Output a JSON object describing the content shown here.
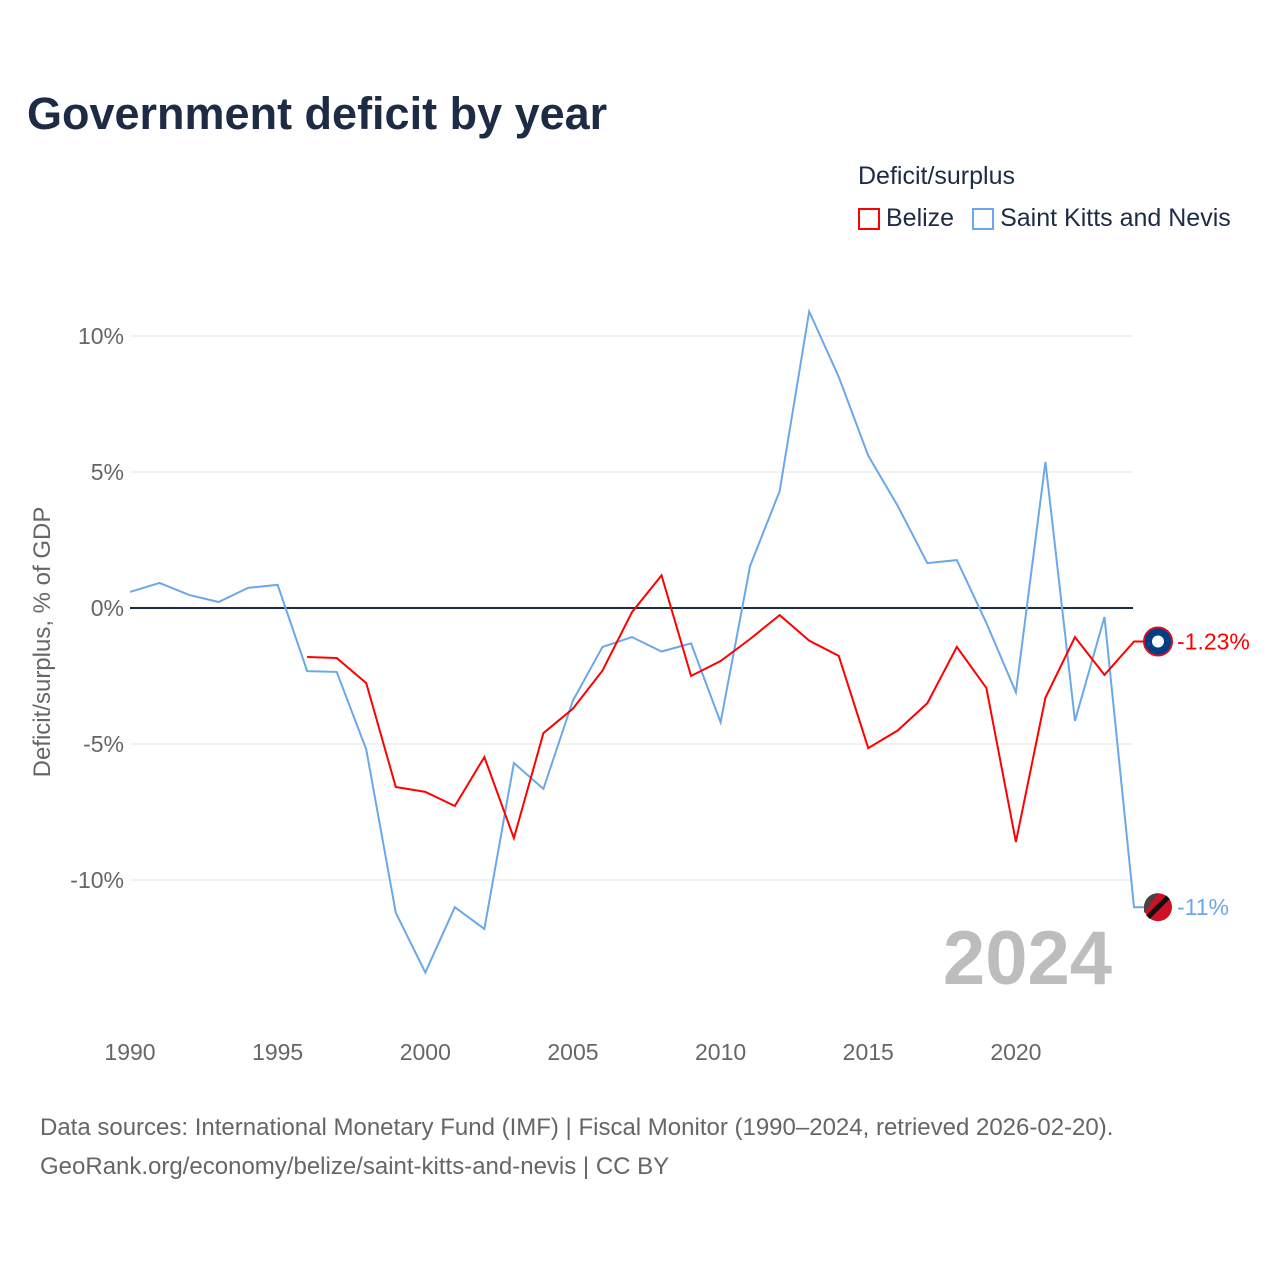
{
  "chart_data": {
    "type": "line",
    "title": "Government deficit by year",
    "ylabel": "Deficit/surplus, % of GDP",
    "xlabel": "",
    "legend_title": "Deficit/surplus",
    "legend_placement": "top-right",
    "xlim": [
      1990,
      2024
    ],
    "ylim": [
      -14.5,
      11.5
    ],
    "x_ticks": [
      1990,
      1995,
      2000,
      2005,
      2010,
      2015,
      2020
    ],
    "y_ticks": [
      10,
      5,
      0,
      -5,
      -10
    ],
    "y_tick_labels": [
      "10%",
      "5%",
      "0%",
      "-5%",
      "-10%"
    ],
    "year_label": "2024",
    "series": [
      {
        "name": "Belize",
        "color": "#ff0000",
        "end_label": "-1.23%",
        "x": [
          1996,
          1997,
          1998,
          1999,
          2000,
          2001,
          2002,
          2003,
          2004,
          2005,
          2006,
          2007,
          2008,
          2009,
          2010,
          2011,
          2012,
          2013,
          2014,
          2015,
          2016,
          2017,
          2018,
          2019,
          2020,
          2021,
          2022,
          2023,
          2024
        ],
        "values": [
          -1.8,
          -1.84,
          -2.76,
          -6.58,
          -6.76,
          -7.28,
          -5.48,
          -8.46,
          -4.6,
          -3.7,
          -2.3,
          -0.15,
          1.2,
          -2.5,
          -1.95,
          -1.14,
          -0.26,
          -1.2,
          -1.76,
          -5.15,
          -4.5,
          -3.5,
          -1.43,
          -2.94,
          -8.6,
          -3.3,
          -1.07,
          -2.46,
          -1.23
        ]
      },
      {
        "name": "Saint Kitts and Nevis",
        "color": "#6aa9e9",
        "end_label": "-11%",
        "x": [
          1990,
          1991,
          1992,
          1993,
          1994,
          1995,
          1996,
          1997,
          1998,
          1999,
          2000,
          2001,
          2002,
          2003,
          2004,
          2005,
          2006,
          2007,
          2008,
          2009,
          2010,
          2011,
          2012,
          2013,
          2014,
          2015,
          2016,
          2017,
          2018,
          2019,
          2020,
          2021,
          2022,
          2023,
          2024
        ],
        "values": [
          0.59,
          0.92,
          0.48,
          0.22,
          0.74,
          0.85,
          -2.32,
          -2.35,
          -5.2,
          -11.2,
          -13.4,
          -11.0,
          -11.8,
          -5.7,
          -6.65,
          -3.4,
          -1.43,
          -1.07,
          -1.6,
          -1.3,
          -4.2,
          1.55,
          4.3,
          10.9,
          8.5,
          5.6,
          3.75,
          1.65,
          1.76,
          -0.55,
          -3.1,
          5.37,
          -4.15,
          -0.33,
          -11.0
        ]
      }
    ]
  },
  "footer": {
    "line1": "Data sources: International Monetary Fund (IMF) | Fiscal Monitor (1990–2024, retrieved 2026-02-20).",
    "line2": "GeoRank.org/economy/belize/saint-kitts-and-nevis | CC BY"
  }
}
